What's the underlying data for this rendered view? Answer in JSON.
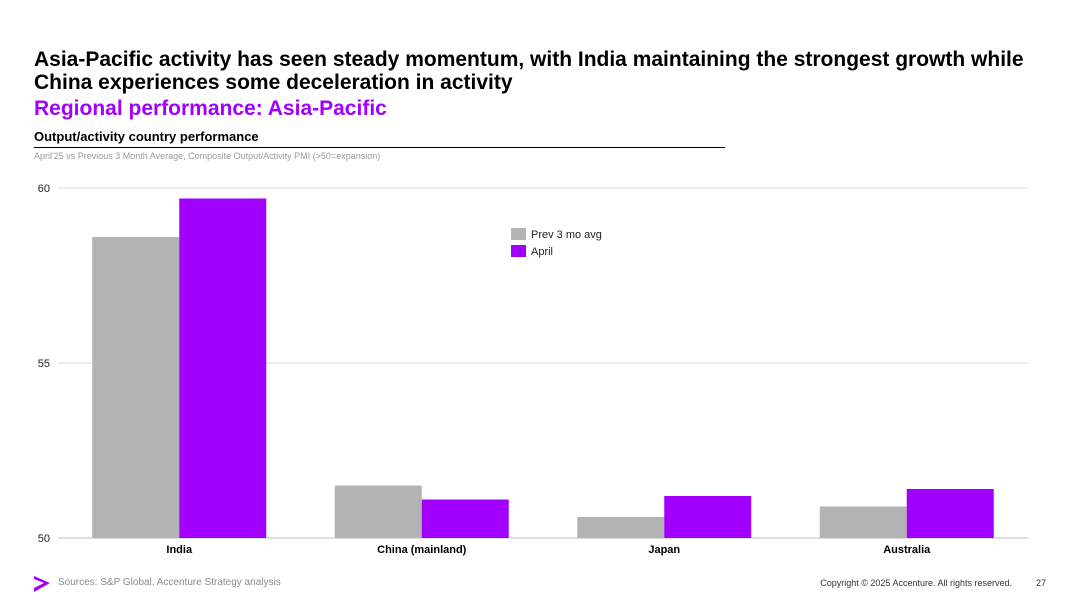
{
  "slide": {
    "headline": "Asia-Pacific activity has seen steady momentum, with India maintaining the strongest growth while China experiences some deceleration in activity",
    "subheading": "Regional performance: Asia-Pacific",
    "footer": {
      "sources": "Sources: S&P Global, Accenture Strategy analysis",
      "copyright": "Copyright © 2025 Accenture. All rights reserved.",
      "page_number": "27",
      "logo_icon": "accenture-greater-than-logo-icon"
    }
  },
  "colors": {
    "accent": "#a100ff",
    "prev": "#b3b3b3",
    "grid": "#d9d9d9"
  },
  "chart_data": {
    "type": "bar",
    "title": "Output/activity country performance",
    "subtitle": "April'25 vs Previous 3 Month Average, Composite Output/Activity PMI (>50=expansion)",
    "categories": [
      "India",
      "China (mainland)",
      "Japan",
      "Australia"
    ],
    "series": [
      {
        "name": "Prev 3 mo avg",
        "values": [
          58.6,
          51.5,
          50.6,
          50.9
        ]
      },
      {
        "name": "April",
        "values": [
          59.7,
          51.1,
          51.2,
          51.4
        ]
      }
    ],
    "ylim": [
      50,
      60
    ],
    "yticks": [
      50,
      55,
      60
    ],
    "xlabel": "",
    "ylabel": "",
    "grid": true,
    "legend": "top-center"
  }
}
